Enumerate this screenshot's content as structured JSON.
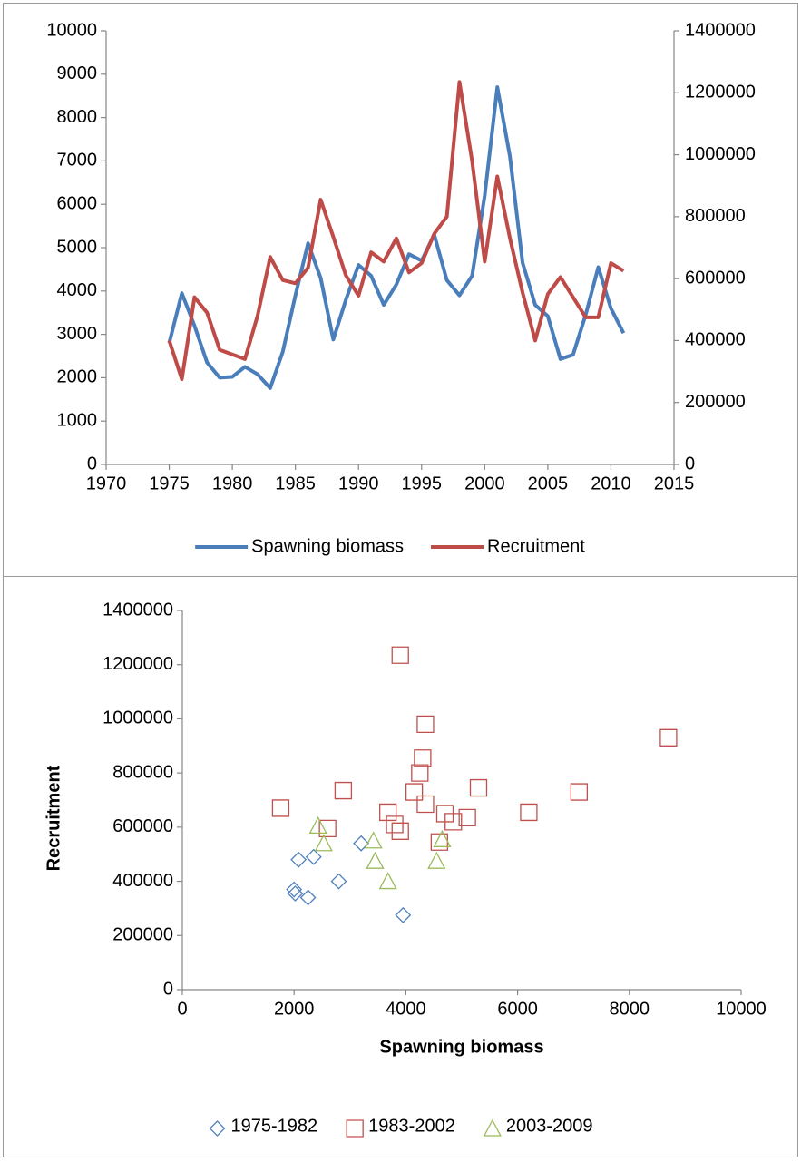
{
  "chart_data": [
    {
      "type": "line",
      "x": [
        1975,
        1976,
        1977,
        1978,
        1979,
        1980,
        1981,
        1982,
        1983,
        1984,
        1985,
        1986,
        1987,
        1988,
        1989,
        1990,
        1991,
        1992,
        1993,
        1994,
        1995,
        1996,
        1997,
        1998,
        1999,
        2000,
        2001,
        2002,
        2003,
        2004,
        2005,
        2006,
        2007,
        2008,
        2009,
        2010,
        2011
      ],
      "series": [
        {
          "name": "Spawning biomass",
          "color": "#4a7ebb",
          "axis": "y",
          "values": [
            2800,
            3950,
            3200,
            2350,
            2000,
            2020,
            2250,
            2080,
            1760,
            2600,
            3900,
            5100,
            4300,
            2880,
            3800,
            4600,
            4350,
            3680,
            4150,
            4850,
            4700,
            5300,
            4250,
            3900,
            4350,
            6200,
            8700,
            7100,
            4650,
            3680,
            3420,
            2430,
            2530,
            3450,
            4550,
            3600,
            3030
          ]
        },
        {
          "name": "Recruitment",
          "color": "#be4b48",
          "axis": "y2",
          "values": [
            400000,
            275000,
            540000,
            490000,
            370000,
            355000,
            340000,
            480000,
            670000,
            595000,
            585000,
            635000,
            855000,
            735000,
            610000,
            545000,
            685000,
            655000,
            730000,
            620000,
            650000,
            745000,
            800000,
            1235000,
            980000,
            655000,
            930000,
            730000,
            555000,
            400000,
            550000,
            605000,
            540000,
            475000,
            475000,
            650000,
            625000
          ]
        }
      ],
      "xlim": [
        1970,
        2015
      ],
      "xticks": [
        1970,
        1975,
        1980,
        1985,
        1990,
        1995,
        2000,
        2005,
        2010,
        2015
      ],
      "ylim": [
        0,
        10000
      ],
      "yticks": [
        0,
        1000,
        2000,
        3000,
        4000,
        5000,
        6000,
        7000,
        8000,
        9000,
        10000
      ],
      "y2lim": [
        0,
        1400000
      ],
      "y2ticks": [
        0,
        200000,
        400000,
        600000,
        800000,
        1000000,
        1200000,
        1400000
      ],
      "legend": "bottom"
    },
    {
      "type": "scatter",
      "x_label": "Spawning biomass",
      "y_label": "Recruitment",
      "series": [
        {
          "name": "1975-1982",
          "color": "#4f81bd",
          "marker": "diamond",
          "x": [
            2800,
            3950,
            3200,
            2350,
            2000,
            2020,
            2250,
            2080
          ],
          "values": [
            400000,
            275000,
            540000,
            490000,
            370000,
            355000,
            340000,
            480000
          ]
        },
        {
          "name": "1983-2002",
          "color": "#c0504d",
          "marker": "square",
          "x": [
            1760,
            2600,
            3900,
            5100,
            4300,
            2880,
            3800,
            4600,
            4350,
            3680,
            4150,
            4850,
            4700,
            5300,
            4250,
            3900,
            4350,
            6200,
            8700,
            7100
          ],
          "values": [
            670000,
            595000,
            585000,
            635000,
            855000,
            735000,
            610000,
            545000,
            685000,
            655000,
            730000,
            620000,
            650000,
            745000,
            800000,
            1235000,
            980000,
            655000,
            930000,
            730000
          ]
        },
        {
          "name": "2003-2009",
          "color": "#9bbb59",
          "marker": "triangle",
          "x": [
            4650,
            3680,
            3420,
            2430,
            2530,
            3450,
            4550
          ],
          "values": [
            555000,
            400000,
            550000,
            605000,
            540000,
            475000,
            475000
          ]
        }
      ],
      "xlim": [
        0,
        10000
      ],
      "xticks": [
        0,
        2000,
        4000,
        6000,
        8000,
        10000
      ],
      "ylim": [
        0,
        1400000
      ],
      "yticks": [
        0,
        200000,
        400000,
        600000,
        800000,
        1000000,
        1200000,
        1400000
      ],
      "legend": "bottom"
    }
  ]
}
